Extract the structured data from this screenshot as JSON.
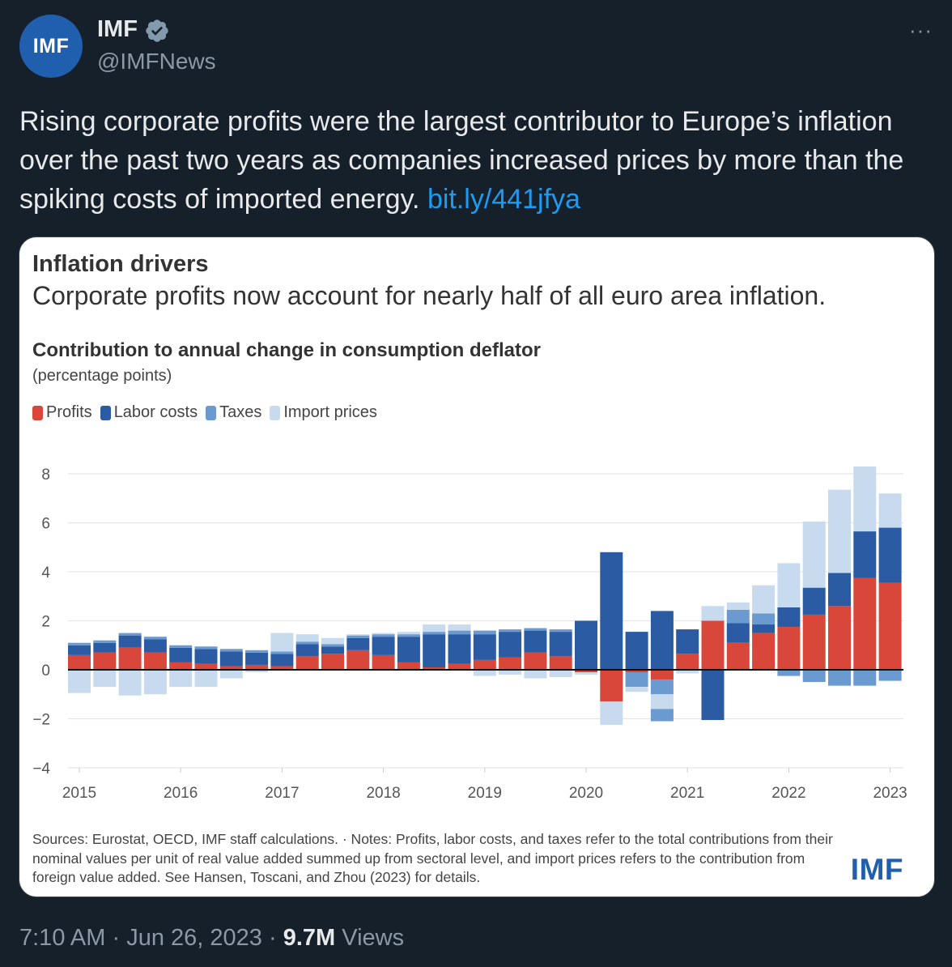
{
  "author": {
    "avatar_text": "IMF",
    "name": "IMF",
    "handle": "@IMFNews",
    "more": "···"
  },
  "tweet": {
    "text": "Rising corporate profits were the largest contributor to Europe’s inflation over the past two years as companies increased prices by more than the spiking costs of imported energy.",
    "link": "bit.ly/441jfya"
  },
  "card": {
    "title": "Inflation drivers",
    "subtitle": "Corporate profits now account for nearly half of all euro area inflation.",
    "chart_title": "Contribution to annual change in consumption deflator",
    "chart_unit": "(percentage points)",
    "sources": "Sources: Eurostat, OECD, IMF staff calculations. · Notes: Profits, labor costs, and taxes refer to the total contributions from their nominal values per unit of real value added summed up from sectoral level, and import prices refers to the contribution from foreign value added. See Hansen, Toscani, and Zhou (2023) for details.",
    "logo": "IMF"
  },
  "meta": {
    "time": "7:10 AM",
    "date": "Jun 26, 2023",
    "views_count": "9.7M",
    "views_label": "Views",
    "sep": "·"
  },
  "colors": {
    "profits": "#d9463a",
    "labor": "#2a5ba3",
    "taxes": "#6a9ad0",
    "imports": "#c8dbee",
    "link": "#1d9bf0",
    "background": "#15202b"
  },
  "chart_data": {
    "type": "bar",
    "stacked": true,
    "title": "Contribution to annual change in consumption deflator",
    "ylabel": "(percentage points)",
    "ylim": [
      -4,
      8
    ],
    "yticks": [
      8,
      6,
      4,
      2,
      0,
      -2,
      -4
    ],
    "grid": true,
    "xticks": [
      "2015",
      "2016",
      "2017",
      "2018",
      "2019",
      "2020",
      "2021",
      "2022",
      "2023"
    ],
    "categories": [
      "2015Q1",
      "2015Q2",
      "2015Q3",
      "2015Q4",
      "2016Q1",
      "2016Q2",
      "2016Q3",
      "2016Q4",
      "2017Q1",
      "2017Q2",
      "2017Q3",
      "2017Q4",
      "2018Q1",
      "2018Q2",
      "2018Q3",
      "2018Q4",
      "2019Q1",
      "2019Q2",
      "2019Q3",
      "2019Q4",
      "2020Q1",
      "2020Q2",
      "2020Q3",
      "2020Q4",
      "2021Q1",
      "2021Q2",
      "2021Q3",
      "2021Q4",
      "2022Q1",
      "2022Q2",
      "2022Q3",
      "2022Q4",
      "2023Q1"
    ],
    "series": [
      {
        "name": "Profits",
        "values": [
          0.6,
          0.7,
          0.9,
          0.7,
          0.3,
          0.25,
          0.15,
          0.2,
          0.15,
          0.55,
          0.65,
          0.8,
          0.6,
          0.3,
          0.1,
          0.25,
          0.4,
          0.5,
          0.7,
          0.55,
          -0.1,
          -1.3,
          -0.1,
          -0.4,
          0.65,
          2.0,
          1.1,
          1.5,
          1.75,
          2.25,
          2.6,
          3.75,
          3.55
        ]
      },
      {
        "name": "Labor costs",
        "values": [
          0.4,
          0.4,
          0.5,
          0.55,
          0.6,
          0.6,
          0.6,
          0.5,
          0.5,
          0.5,
          0.3,
          0.5,
          0.75,
          1.05,
          1.35,
          1.2,
          1.05,
          1.05,
          0.9,
          1.0,
          2.0,
          4.8,
          1.55,
          2.4,
          1.0,
          -2.05,
          0.8,
          0.35,
          0.8,
          1.1,
          1.35,
          1.9,
          2.25
        ]
      },
      {
        "name": "Taxes",
        "values": [
          0.1,
          0.1,
          0.1,
          0.1,
          0.1,
          0.1,
          0.1,
          0.1,
          0.1,
          0.1,
          0.1,
          0.1,
          0.1,
          0.1,
          0.1,
          0.15,
          0.15,
          0.1,
          0.1,
          0.1,
          0.0,
          0.0,
          -0.6,
          -0.6,
          0.0,
          0.0,
          0.55,
          0.45,
          0.0,
          0.0,
          0.0,
          -0.2,
          -0.2
        ]
      },
      {
        "name": "Import prices",
        "values": [
          -0.95,
          -0.7,
          -1.05,
          -1.0,
          -0.7,
          -0.7,
          -0.35,
          -0.1,
          0.75,
          0.3,
          0.25,
          0.05,
          0.05,
          0.1,
          0.3,
          0.25,
          -0.25,
          -0.2,
          -0.35,
          -0.3,
          -0.1,
          -0.95,
          -0.2,
          -0.6,
          -0.15,
          0.6,
          0.3,
          1.15,
          1.8,
          2.7,
          3.4,
          2.65,
          1.4
        ]
      },
      {
        "name": "Taxes (negative)",
        "legend": false,
        "values": [
          0,
          0,
          0,
          0,
          0,
          0,
          0,
          0,
          0,
          0,
          0,
          0,
          0,
          0,
          0,
          0,
          0,
          0,
          0,
          0,
          0,
          0,
          0,
          -0.5,
          0,
          0,
          0,
          0,
          -0.25,
          -0.5,
          -0.65,
          -0.45,
          -0.25
        ]
      }
    ],
    "legend": [
      "Profits",
      "Labor costs",
      "Taxes",
      "Import prices"
    ],
    "legend_position": "top-left"
  }
}
